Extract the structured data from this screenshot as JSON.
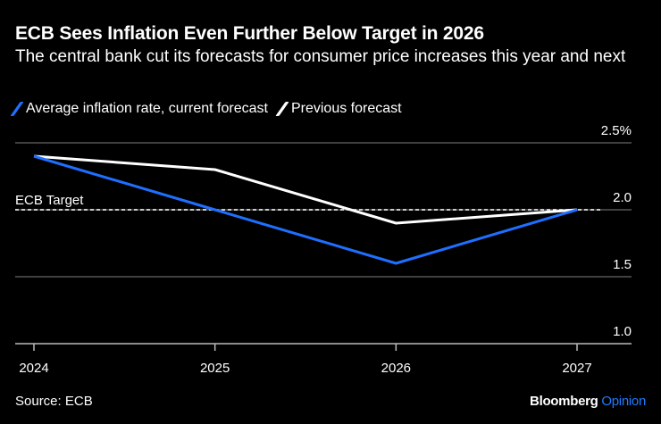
{
  "title": "ECB Sees Inflation Even Further Below Target in 2026",
  "subtitle": "The central bank cut its forecasts for consumer price increases this year and next",
  "source": "Source: ECB",
  "brand": {
    "name": "Bloomberg",
    "suffix": "Opinion"
  },
  "colors": {
    "current": "#1f6fff",
    "previous": "#ffffff",
    "accent": "#1f7aff"
  },
  "chart_data": {
    "type": "line",
    "categories": [
      "2024",
      "2025",
      "2026",
      "2027"
    ],
    "series": [
      {
        "name": "Average inflation rate, current forecast",
        "values": [
          2.4,
          2.0,
          1.6,
          2.0
        ],
        "color": "#1f6fff"
      },
      {
        "name": "Previous forecast",
        "values": [
          2.4,
          2.3,
          1.9,
          2.0
        ],
        "color": "#ffffff"
      }
    ],
    "ylim": [
      1.0,
      2.5
    ],
    "yticks": [
      {
        "value": 1.0,
        "label": "1.0"
      },
      {
        "value": 1.5,
        "label": "1.5"
      },
      {
        "value": 2.0,
        "label": "2.0"
      },
      {
        "value": 2.5,
        "label": "2.5%"
      }
    ],
    "annotations": [
      {
        "label": "ECB Target",
        "value": 2.0
      }
    ],
    "grid": true,
    "legend": "top-left"
  }
}
